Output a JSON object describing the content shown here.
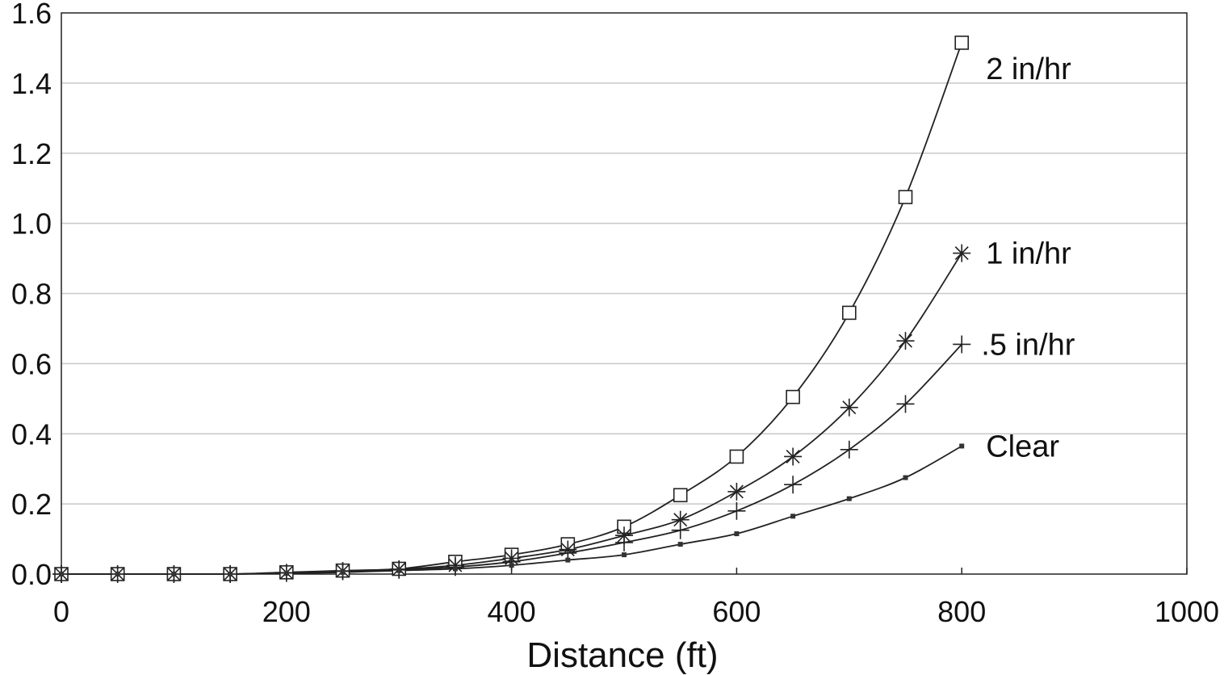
{
  "chart_data": {
    "type": "line",
    "title": "",
    "xlabel": "Distance (ft)",
    "ylabel": "",
    "xlim": [
      0,
      1000
    ],
    "ylim": [
      0,
      1.6
    ],
    "x_ticks": [
      "0",
      "200",
      "400",
      "600",
      "800",
      "1000"
    ],
    "y_ticks": [
      "0.0",
      "0.2",
      "0.4",
      "0.6",
      "0.8",
      "1.0",
      "1.2",
      "1.4",
      "1.6"
    ],
    "grid": "horizontal",
    "legend": "none",
    "x": [
      0,
      50,
      100,
      150,
      200,
      250,
      300,
      350,
      400,
      450,
      500,
      550,
      600,
      650,
      700,
      750,
      800
    ],
    "series": [
      {
        "name": "2 in/hr",
        "marker": "square",
        "values": [
          0,
          0,
          0,
          0,
          0.005,
          0.01,
          0.015,
          0.035,
          0.055,
          0.085,
          0.135,
          0.225,
          0.335,
          0.505,
          0.745,
          1.075,
          1.515
        ]
      },
      {
        "name": "1 in/hr",
        "marker": "asterisk",
        "values": [
          0,
          0,
          0,
          0,
          0.004,
          0.009,
          0.014,
          0.025,
          0.045,
          0.07,
          0.11,
          0.155,
          0.235,
          0.335,
          0.475,
          0.665,
          0.915
        ]
      },
      {
        "name": ".5 in/hr",
        "marker": "plus",
        "values": [
          0,
          0,
          0,
          0,
          0.003,
          0.008,
          0.012,
          0.02,
          0.035,
          0.06,
          0.09,
          0.125,
          0.18,
          0.255,
          0.355,
          0.485,
          0.655
        ]
      },
      {
        "name": "Clear",
        "marker": "dot",
        "values": [
          0,
          0,
          0,
          0,
          0.002,
          0.005,
          0.01,
          0.015,
          0.025,
          0.04,
          0.055,
          0.085,
          0.115,
          0.165,
          0.215,
          0.275,
          0.365
        ]
      }
    ]
  }
}
